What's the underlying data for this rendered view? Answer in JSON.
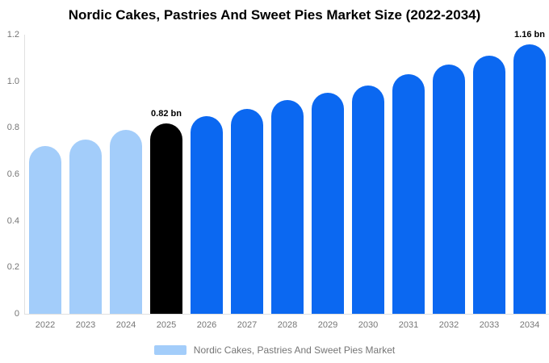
{
  "title": "Nordic Cakes, Pastries And Sweet Pies Market Size (2022-2034)",
  "legend": {
    "label": "Nordic Cakes, Pastries And Sweet Pies Market",
    "swatch_color": "#a3cdfa"
  },
  "colors": {
    "historical_bar": "#a3cdfa",
    "base_year_bar": "#000000",
    "forecast_bar": "#0b68f1",
    "axis_line": "#e0e0e0",
    "tick_text": "#757575",
    "title_text": "#000000"
  },
  "chart_data": {
    "type": "bar",
    "title": "Nordic Cakes, Pastries And Sweet Pies Market Size (2022-2034)",
    "xlabel": "",
    "ylabel": "",
    "unit": "bn",
    "categories": [
      "2022",
      "2023",
      "2024",
      "2025",
      "2026",
      "2027",
      "2028",
      "2029",
      "2030",
      "2031",
      "2032",
      "2033",
      "2034"
    ],
    "values": [
      0.72,
      0.75,
      0.79,
      0.82,
      0.85,
      0.88,
      0.92,
      0.95,
      0.98,
      1.03,
      1.07,
      1.11,
      1.16
    ],
    "bar_colors": [
      "#a3cdfa",
      "#a3cdfa",
      "#a3cdfa",
      "#000000",
      "#0b68f1",
      "#0b68f1",
      "#0b68f1",
      "#0b68f1",
      "#0b68f1",
      "#0b68f1",
      "#0b68f1",
      "#0b68f1",
      "#0b68f1"
    ],
    "ylim": [
      0,
      1.2
    ],
    "ytick_values": [
      0,
      0.2,
      0.4,
      0.6,
      0.8,
      1.0,
      1.2
    ],
    "ytick_labels": [
      "0",
      "0.2",
      "0.4",
      "0.6",
      "0.8",
      "1.0",
      "1.2"
    ],
    "grid": false,
    "legend_position": "bottom",
    "legend_entries": [
      "Nordic Cakes, Pastries And Sweet Pies Market"
    ],
    "annotations": [
      {
        "category": "2025",
        "text": "0.82 bn"
      },
      {
        "category": "2034",
        "text": "1.16 bn"
      }
    ]
  }
}
